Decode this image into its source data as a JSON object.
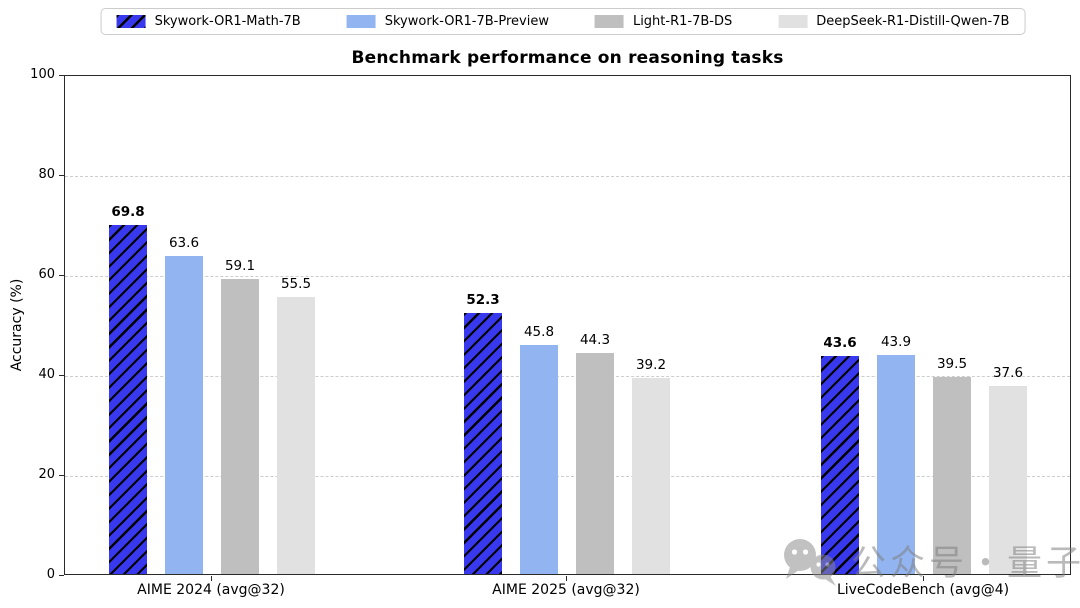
{
  "title": "Benchmark performance on reasoning tasks",
  "watermark": {
    "text": "公众号・量子位",
    "icon": "wechat-icon"
  },
  "chart_data": {
    "type": "bar",
    "title": "Benchmark performance on reasoning tasks",
    "xlabel": "",
    "ylabel": "Accuracy (%)",
    "ylim": [
      0,
      100
    ],
    "yticks": [
      0,
      20,
      40,
      60,
      80,
      100
    ],
    "grid": "horizontal dashed",
    "legend_position": "top center",
    "value_labels": "one decimal above each bar, first series bold",
    "categories": [
      "AIME 2024 (avg@32)",
      "AIME 2025 (avg@32)",
      "LiveCodeBench (avg@4)"
    ],
    "series": [
      {
        "name": "Skywork-OR1-Math-7B",
        "color": "#3838ef",
        "hatch": "//",
        "values": [
          69.8,
          52.3,
          43.6
        ]
      },
      {
        "name": "Skywork-OR1-7B-Preview",
        "color": "#92b5f2",
        "hatch": "",
        "values": [
          63.6,
          45.8,
          43.9
        ]
      },
      {
        "name": "Light-R1-7B-DS",
        "color": "#bfbfbf",
        "hatch": "",
        "values": [
          59.1,
          44.3,
          39.5
        ]
      },
      {
        "name": "DeepSeek-R1-Distill-Qwen-7B",
        "color": "#e1e1e1",
        "hatch": "",
        "values": [
          55.5,
          39.2,
          37.6
        ]
      }
    ]
  }
}
